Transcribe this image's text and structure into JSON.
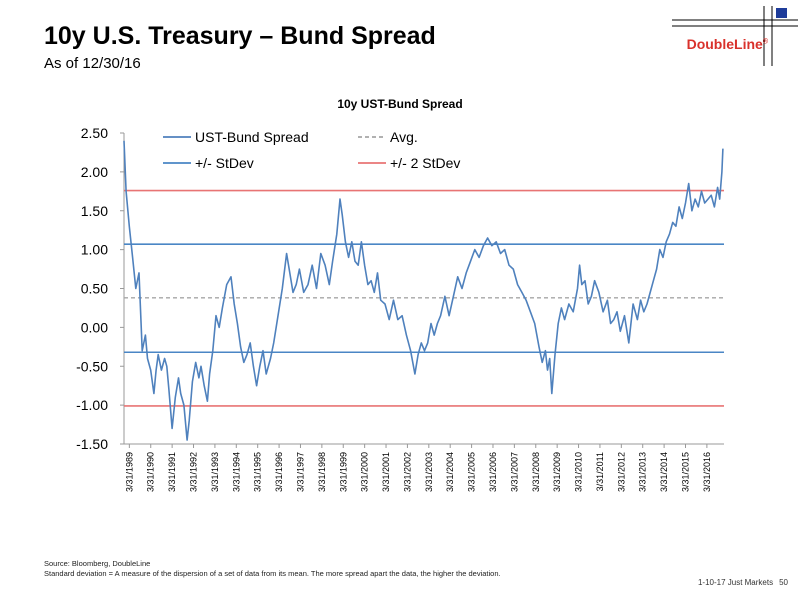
{
  "header": {
    "title": "10y U.S. Treasury – Bund Spread",
    "subtitle": "As of 12/30/16",
    "logo_text": "DoubleLine",
    "logo_mark": "®"
  },
  "footer": {
    "source": "Source: Bloomberg, DoubleLine",
    "note": "Standard deviation = A measure of the dispersion of a set of data from its mean. The more spread apart the data, the higher the deviation.",
    "deck": "1-10-17 Just Markets",
    "page": "50"
  },
  "colors": {
    "series": "#4f81bd",
    "stdev": "#4a86c5",
    "two_stdev": "#e87474",
    "avg": "#a6a6a6",
    "brand": "#d9312b"
  },
  "chart_data": {
    "type": "line",
    "title": "10y UST-Bund Spread",
    "xlabel": "",
    "ylabel": "",
    "ylim": [
      -1.5,
      2.5
    ],
    "y_ticks": [
      "2.50",
      "2.00",
      "1.50",
      "1.00",
      "0.50",
      "0.00",
      "-0.50",
      "-1.00",
      "-1.50"
    ],
    "x_ticks": [
      "3/31/1989",
      "3/31/1990",
      "3/31/1991",
      "3/31/1992",
      "3/31/1993",
      "3/31/1994",
      "3/31/1995",
      "3/31/1996",
      "3/31/1997",
      "3/31/1998",
      "3/31/1999",
      "3/31/2000",
      "3/31/2001",
      "3/31/2002",
      "3/31/2003",
      "3/31/2004",
      "3/31/2005",
      "3/31/2006",
      "3/31/2007",
      "3/31/2008",
      "3/31/2009",
      "3/31/2010",
      "3/31/2011",
      "3/31/2012",
      "3/31/2013",
      "3/31/2014",
      "3/31/2015",
      "3/31/2016"
    ],
    "x_range": [
      1989.0,
      2017.05
    ],
    "grid": false,
    "legend": [
      {
        "label": "UST-Bund Spread",
        "style": "solid",
        "color": "#4f81bd"
      },
      {
        "label": "Avg.",
        "style": "dashed",
        "color": "#a6a6a6"
      },
      {
        "label": "+/- StDev",
        "style": "solid",
        "color": "#4a86c5"
      },
      {
        "label": "+/- 2 StDev",
        "style": "solid",
        "color": "#e87474"
      }
    ],
    "reference_lines": [
      {
        "name": "+2 StDev",
        "value": 1.76
      },
      {
        "name": "+1 StDev",
        "value": 1.07
      },
      {
        "name": "Avg.",
        "value": 0.38
      },
      {
        "name": "-1 StDev",
        "value": -0.32
      },
      {
        "name": "-2 StDev",
        "value": -1.01
      }
    ],
    "series": [
      {
        "name": "UST-Bund Spread",
        "x": [
          1989.0,
          1989.1,
          1989.25,
          1989.4,
          1989.55,
          1989.7,
          1989.85,
          1990.0,
          1990.1,
          1990.25,
          1990.4,
          1990.5,
          1990.6,
          1990.75,
          1990.9,
          1991.0,
          1991.1,
          1991.25,
          1991.4,
          1991.55,
          1991.65,
          1991.8,
          1991.95,
          1992.05,
          1992.2,
          1992.35,
          1992.5,
          1992.6,
          1992.75,
          1992.9,
          1993.0,
          1993.15,
          1993.3,
          1993.45,
          1993.6,
          1993.8,
          1994.0,
          1994.15,
          1994.3,
          1994.45,
          1994.6,
          1994.75,
          1994.9,
          1995.05,
          1995.2,
          1995.35,
          1995.5,
          1995.65,
          1995.85,
          1996.0,
          1996.2,
          1996.4,
          1996.6,
          1996.75,
          1996.9,
          1997.05,
          1997.2,
          1997.4,
          1997.6,
          1997.8,
          1998.0,
          1998.2,
          1998.4,
          1998.6,
          1998.75,
          1998.95,
          1999.1,
          1999.2,
          1999.35,
          1999.5,
          1999.65,
          1999.8,
          1999.95,
          2000.1,
          2000.25,
          2000.4,
          2000.55,
          2000.7,
          2000.85,
          2001.0,
          2001.2,
          2001.4,
          2001.6,
          2001.8,
          2002.0,
          2002.2,
          2002.4,
          2002.6,
          2002.75,
          2002.9,
          2003.05,
          2003.2,
          2003.35,
          2003.5,
          2003.65,
          2003.8,
          2004.0,
          2004.2,
          2004.4,
          2004.6,
          2004.8,
          2005.0,
          2005.2,
          2005.4,
          2005.6,
          2005.8,
          2006.0,
          2006.2,
          2006.4,
          2006.6,
          2006.8,
          2007.0,
          2007.2,
          2007.4,
          2007.6,
          2007.8,
          2008.0,
          2008.2,
          2008.4,
          2008.55,
          2008.7,
          2008.8,
          2008.9,
          2009.0,
          2009.15,
          2009.3,
          2009.45,
          2009.6,
          2009.8,
          2010.0,
          2010.2,
          2010.3,
          2010.4,
          2010.55,
          2010.7,
          2010.85,
          2011.0,
          2011.2,
          2011.4,
          2011.6,
          2011.75,
          2011.9,
          2012.05,
          2012.2,
          2012.4,
          2012.6,
          2012.8,
          2013.0,
          2013.15,
          2013.3,
          2013.45,
          2013.6,
          2013.75,
          2013.9,
          2014.05,
          2014.2,
          2014.35,
          2014.5,
          2014.65,
          2014.8,
          2014.95,
          2015.1,
          2015.25,
          2015.4,
          2015.55,
          2015.7,
          2015.85,
          2016.0,
          2016.15,
          2016.3,
          2016.45,
          2016.6,
          2016.75,
          2016.85,
          2016.95,
          2017.0
        ],
        "values": [
          2.4,
          1.75,
          1.3,
          0.9,
          0.5,
          0.7,
          -0.3,
          -0.1,
          -0.4,
          -0.55,
          -0.85,
          -0.55,
          -0.35,
          -0.55,
          -0.4,
          -0.5,
          -0.8,
          -1.3,
          -0.9,
          -0.65,
          -0.85,
          -1.0,
          -1.45,
          -1.2,
          -0.7,
          -0.45,
          -0.65,
          -0.5,
          -0.75,
          -0.95,
          -0.6,
          -0.3,
          0.15,
          0.0,
          0.25,
          0.55,
          0.65,
          0.3,
          0.05,
          -0.25,
          -0.45,
          -0.35,
          -0.2,
          -0.5,
          -0.75,
          -0.5,
          -0.3,
          -0.6,
          -0.4,
          -0.2,
          0.15,
          0.5,
          0.95,
          0.7,
          0.45,
          0.55,
          0.75,
          0.45,
          0.55,
          0.8,
          0.5,
          0.95,
          0.8,
          0.55,
          0.85,
          1.2,
          1.65,
          1.45,
          1.1,
          0.9,
          1.1,
          0.85,
          0.8,
          1.1,
          0.8,
          0.55,
          0.6,
          0.45,
          0.7,
          0.35,
          0.3,
          0.1,
          0.35,
          0.1,
          0.15,
          -0.1,
          -0.3,
          -0.6,
          -0.35,
          -0.2,
          -0.3,
          -0.2,
          0.05,
          -0.1,
          0.05,
          0.15,
          0.4,
          0.15,
          0.4,
          0.65,
          0.5,
          0.7,
          0.85,
          1.0,
          0.9,
          1.05,
          1.15,
          1.05,
          1.1,
          0.95,
          1.0,
          0.8,
          0.75,
          0.55,
          0.45,
          0.35,
          0.2,
          0.05,
          -0.25,
          -0.45,
          -0.3,
          -0.55,
          -0.4,
          -0.85,
          -0.35,
          0.05,
          0.25,
          0.1,
          0.3,
          0.2,
          0.5,
          0.8,
          0.55,
          0.6,
          0.3,
          0.4,
          0.6,
          0.45,
          0.2,
          0.35,
          0.05,
          0.1,
          0.2,
          -0.05,
          0.15,
          -0.2,
          0.3,
          0.1,
          0.35,
          0.2,
          0.3,
          0.45,
          0.6,
          0.75,
          1.0,
          0.9,
          1.1,
          1.2,
          1.35,
          1.3,
          1.55,
          1.4,
          1.6,
          1.85,
          1.5,
          1.65,
          1.55,
          1.75,
          1.6,
          1.65,
          1.7,
          1.55,
          1.8,
          1.65,
          2.0,
          2.3
        ]
      }
    ]
  }
}
